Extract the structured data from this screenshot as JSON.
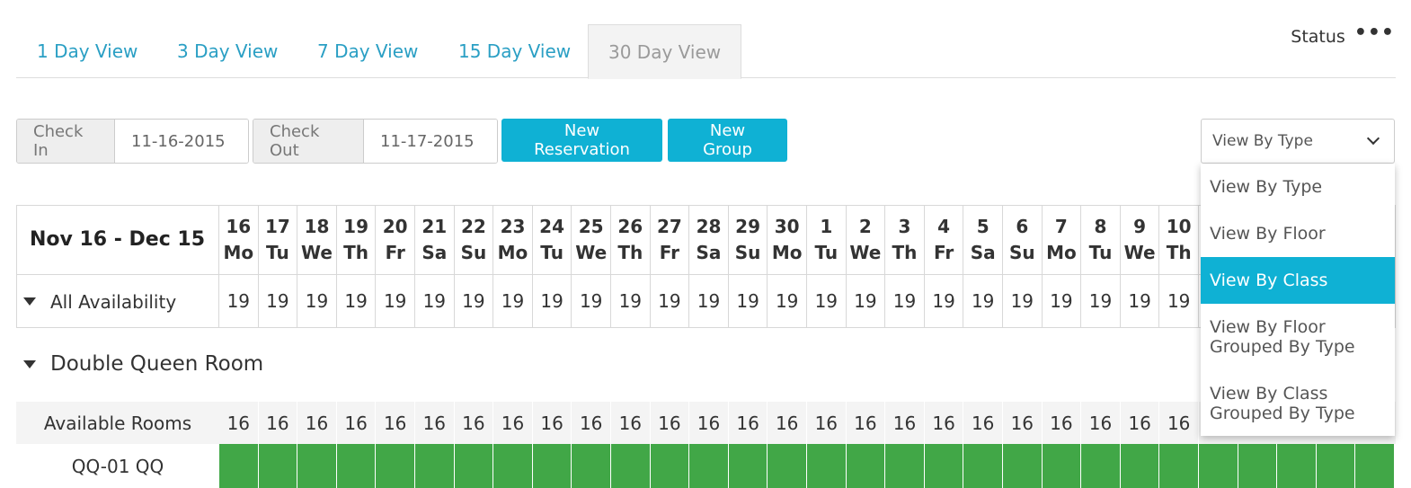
{
  "tabs": [
    {
      "label": "1 Day View",
      "active": false
    },
    {
      "label": "3 Day View",
      "active": false
    },
    {
      "label": "7 Day View",
      "active": false
    },
    {
      "label": "15 Day View",
      "active": false
    },
    {
      "label": "30 Day View",
      "active": true
    }
  ],
  "status": {
    "label": "Status"
  },
  "controls": {
    "check_in_label": "Check In",
    "check_in_value": "11-16-2015",
    "check_out_label": "Check Out",
    "check_out_value": "11-17-2015",
    "new_reservation_label": "New Reservation",
    "new_group_label": "New Group"
  },
  "view_select": {
    "selected": "View By Type",
    "options": [
      {
        "label": "View By Type",
        "highlighted": false
      },
      {
        "label": "View By Floor",
        "highlighted": false
      },
      {
        "label": "View By Class",
        "highlighted": true
      },
      {
        "label": "View By Floor Grouped By Type",
        "highlighted": false
      },
      {
        "label": "View By Class Grouped By Type",
        "highlighted": false
      }
    ]
  },
  "calendar": {
    "range_title": "Nov 16 - Dec 15",
    "all_availability_label": "All Availability",
    "days": [
      {
        "num": "16",
        "dow": "Mo",
        "avail": "19",
        "rooms": "16"
      },
      {
        "num": "17",
        "dow": "Tu",
        "avail": "19",
        "rooms": "16"
      },
      {
        "num": "18",
        "dow": "We",
        "avail": "19",
        "rooms": "16"
      },
      {
        "num": "19",
        "dow": "Th",
        "avail": "19",
        "rooms": "16"
      },
      {
        "num": "20",
        "dow": "Fr",
        "avail": "19",
        "rooms": "16"
      },
      {
        "num": "21",
        "dow": "Sa",
        "avail": "19",
        "rooms": "16"
      },
      {
        "num": "22",
        "dow": "Su",
        "avail": "19",
        "rooms": "16"
      },
      {
        "num": "23",
        "dow": "Mo",
        "avail": "19",
        "rooms": "16"
      },
      {
        "num": "24",
        "dow": "Tu",
        "avail": "19",
        "rooms": "16"
      },
      {
        "num": "25",
        "dow": "We",
        "avail": "19",
        "rooms": "16"
      },
      {
        "num": "26",
        "dow": "Th",
        "avail": "19",
        "rooms": "16"
      },
      {
        "num": "27",
        "dow": "Fr",
        "avail": "19",
        "rooms": "16"
      },
      {
        "num": "28",
        "dow": "Sa",
        "avail": "19",
        "rooms": "16"
      },
      {
        "num": "29",
        "dow": "Su",
        "avail": "19",
        "rooms": "16"
      },
      {
        "num": "30",
        "dow": "Mo",
        "avail": "19",
        "rooms": "16"
      },
      {
        "num": "1",
        "dow": "Tu",
        "avail": "19",
        "rooms": "16"
      },
      {
        "num": "2",
        "dow": "We",
        "avail": "19",
        "rooms": "16"
      },
      {
        "num": "3",
        "dow": "Th",
        "avail": "19",
        "rooms": "16"
      },
      {
        "num": "4",
        "dow": "Fr",
        "avail": "19",
        "rooms": "16"
      },
      {
        "num": "5",
        "dow": "Sa",
        "avail": "19",
        "rooms": "16"
      },
      {
        "num": "6",
        "dow": "Su",
        "avail": "19",
        "rooms": "16"
      },
      {
        "num": "7",
        "dow": "Mo",
        "avail": "19",
        "rooms": "16"
      },
      {
        "num": "8",
        "dow": "Tu",
        "avail": "19",
        "rooms": "16"
      },
      {
        "num": "9",
        "dow": "We",
        "avail": "19",
        "rooms": "16"
      },
      {
        "num": "10",
        "dow": "Th",
        "avail": "19",
        "rooms": "16"
      }
    ],
    "room_group": {
      "title": "Double Queen Room",
      "available_rooms_label": "Available Rooms",
      "room_label": "QQ-01 QQ"
    }
  },
  "colors": {
    "accent": "#0fb1d4",
    "tab_link": "#2a9fc4",
    "booked_green": "#41a747"
  }
}
